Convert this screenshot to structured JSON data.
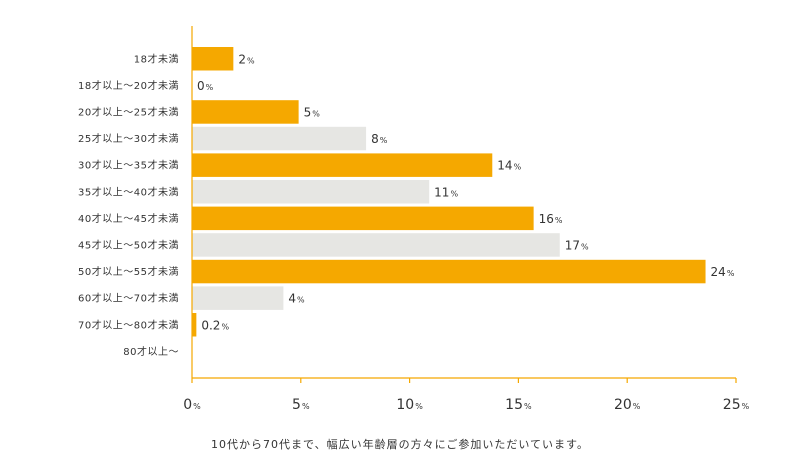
{
  "chart_data": {
    "type": "bar",
    "orientation": "horizontal",
    "categories": [
      "18才未満",
      "18才以上～20才未満",
      "20才以上～25才未満",
      "25才以上～30才未満",
      "30才以上～35才未満",
      "35才以上～40才未満",
      "40才以上～45才未満",
      "45才以上～50才未満",
      "50才以上～55才未満",
      "60才以上～70才未満",
      "70才以上～80才未満",
      "80才以上～"
    ],
    "values": [
      1.9,
      0,
      4.9,
      8.0,
      13.8,
      10.9,
      15.7,
      16.9,
      23.6,
      4.2,
      0.2,
      0
    ],
    "data_labels": [
      "2",
      "0",
      "5",
      "8",
      "14",
      "11",
      "16",
      "17",
      "24",
      "4",
      "0.2",
      ""
    ],
    "label_unit": "%",
    "bar_colors": [
      "#f5a800",
      "#f5a800",
      "#f5a800",
      "#e6e6e3",
      "#f5a800",
      "#e6e6e3",
      "#f5a800",
      "#e6e6e3",
      "#f5a800",
      "#e6e6e3",
      "#f5a800",
      "#f5a800"
    ],
    "xlim": [
      0,
      25
    ],
    "xticks": [
      0,
      5,
      10,
      15,
      20,
      25
    ],
    "tick_unit": "%",
    "grid": false,
    "caption": "10代から70代まで、幅広い年齢層の方々にご参加いただいています。"
  }
}
